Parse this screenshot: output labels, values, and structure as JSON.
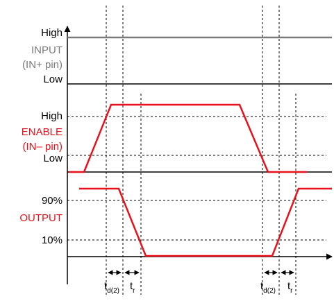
{
  "colors": {
    "input_signal": "#7a7a7a",
    "enable_signal": "#e8101a",
    "output_signal": "#e8101a",
    "axis": "#000000",
    "guide": "#000000"
  },
  "input": {
    "label_line1": "INPUT",
    "label_line2": "(IN+ pin)",
    "high": "High",
    "low": "Low"
  },
  "enable": {
    "label_line1": "ENABLE",
    "label_line2": "(IN– pin)",
    "high": "High",
    "low": "Low"
  },
  "output": {
    "label": "OUTPUT",
    "level_high": "90%",
    "level_low": "10%"
  },
  "timing": {
    "delay_main": "t",
    "delay_sub": "d(2)",
    "rise_main": "t",
    "rise_sub": "r"
  }
}
